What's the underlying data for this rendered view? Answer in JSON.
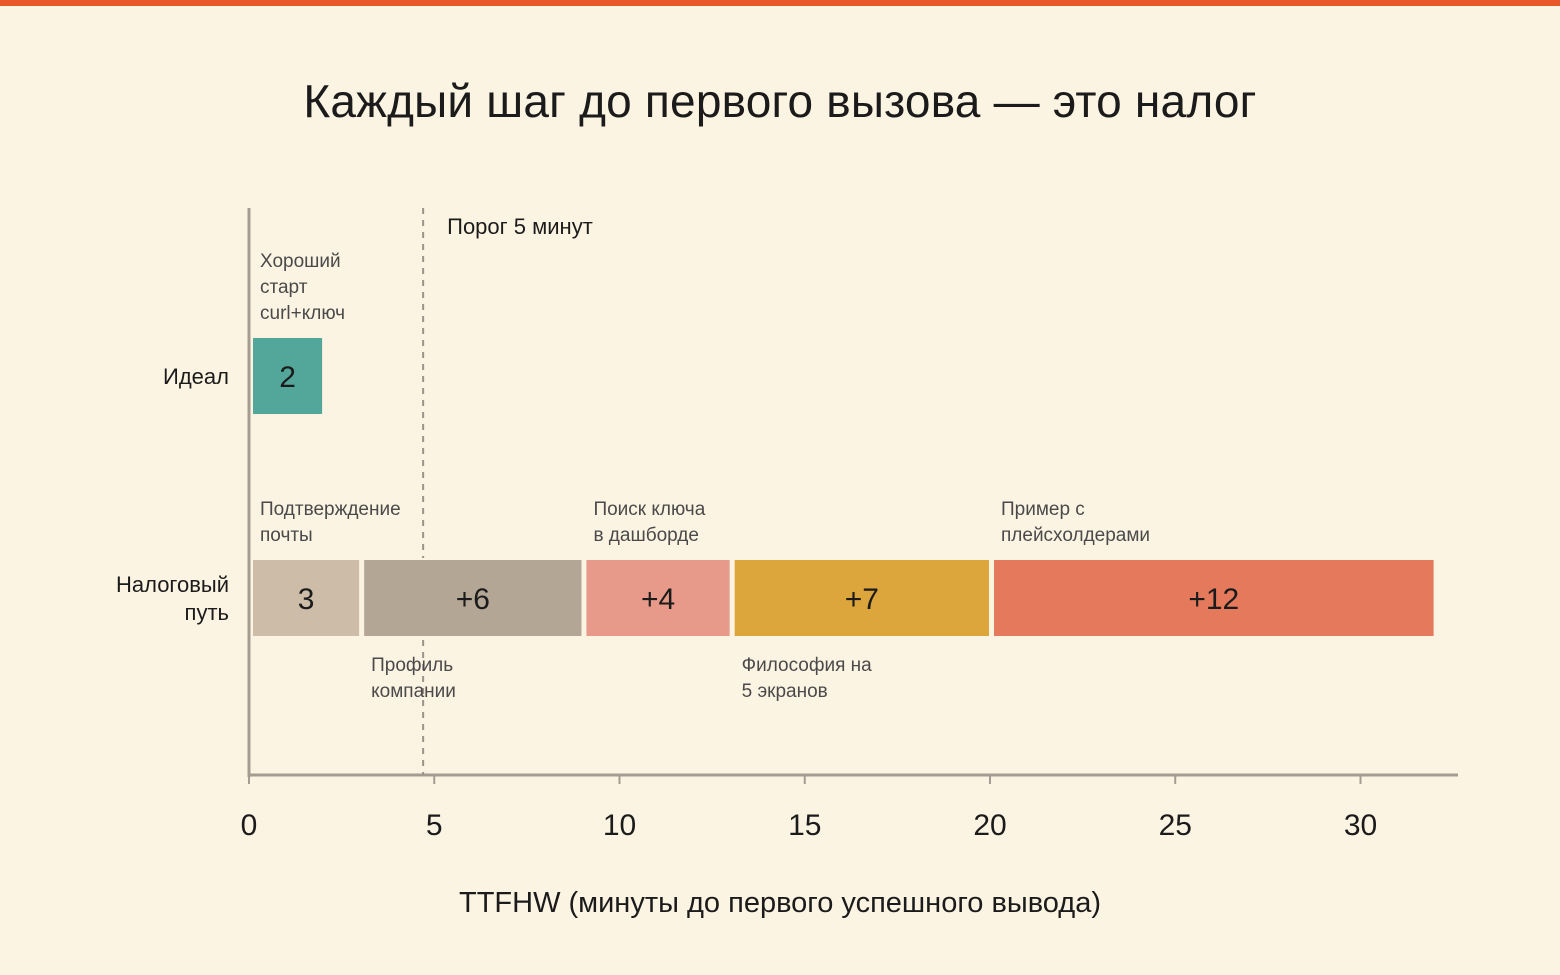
{
  "title": "Каждый шаг до первого вызова — это налог",
  "colors": {
    "accent": "#E8572A",
    "background": "#FCF4E2",
    "axis": "#A69B90",
    "text": "#1B1B1B",
    "annotation": "#4A4A4A"
  },
  "chart_data": {
    "type": "bar",
    "orientation": "horizontal-stacked",
    "xlabel": "TTFHW (минуты до первого успешного вывода)",
    "xlim": [
      0,
      32.5
    ],
    "xticks": [
      0,
      5,
      10,
      15,
      20,
      25,
      30
    ],
    "threshold": {
      "value": 4.7,
      "label": "Порог 5 минут"
    },
    "rows": [
      {
        "label": [
          "Идеал"
        ],
        "segments": [
          {
            "start": 0,
            "value": 2,
            "text": "2",
            "color": "#53A69A",
            "note": [
              "Хороший",
              "старт",
              "curl+ключ"
            ],
            "note_pos": "above"
          }
        ]
      },
      {
        "label": [
          "Налоговый",
          "путь"
        ],
        "segments": [
          {
            "start": 0,
            "value": 3,
            "text": "3",
            "color": "#CDBCA8",
            "note": [
              "Подтверждение",
              "почты"
            ],
            "note_pos": "above"
          },
          {
            "start": 3,
            "value": 6,
            "text": "+6",
            "color": "#B3A695",
            "note": [
              "Профиль",
              "компании"
            ],
            "note_pos": "below"
          },
          {
            "start": 9,
            "value": 4,
            "text": "+4",
            "color": "#E89A8A",
            "note": [
              "Поиск ключа",
              "в дашборде"
            ],
            "note_pos": "above"
          },
          {
            "start": 13,
            "value": 7,
            "text": "+7",
            "color": "#DCA63C",
            "note": [
              "Философия на",
              "5 экранов"
            ],
            "note_pos": "below"
          },
          {
            "start": 20,
            "value": 12,
            "text": "+12",
            "color": "#E4795C",
            "note": [
              "Пример с",
              "плейсхолдерами"
            ],
            "note_pos": "above"
          }
        ]
      }
    ]
  }
}
